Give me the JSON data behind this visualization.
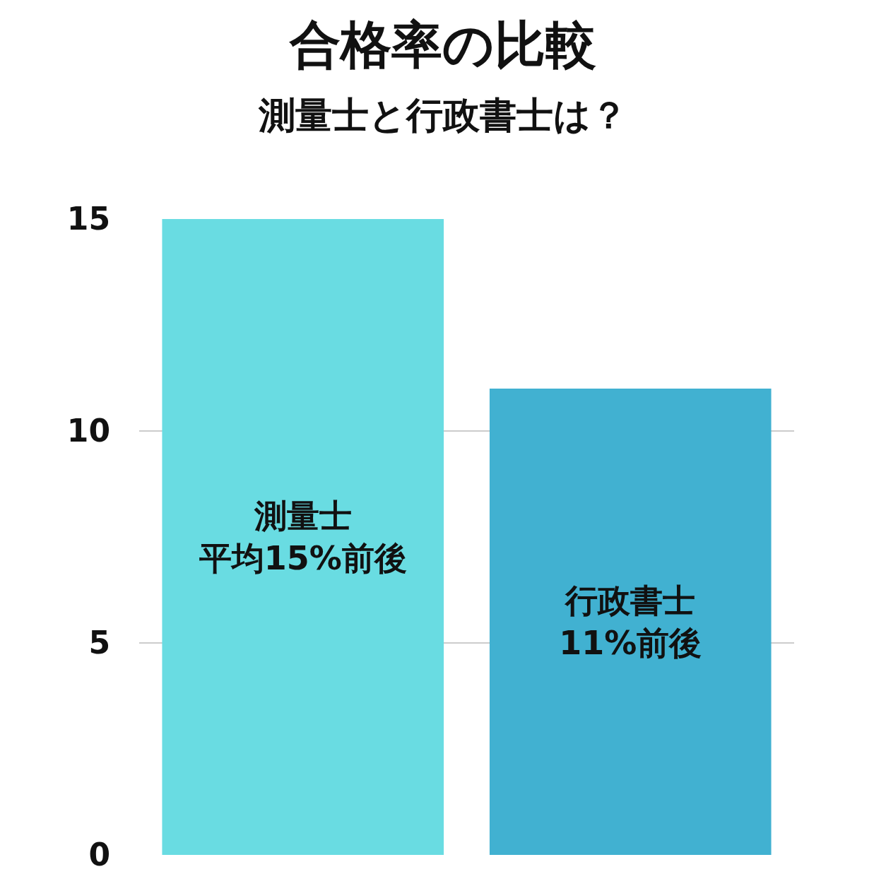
{
  "chart_data": {
    "type": "bar",
    "title": "合格率の比較",
    "subtitle": "測量士と行政書士は？",
    "categories": [
      "測量士",
      "行政書士"
    ],
    "values": [
      15,
      11
    ],
    "colors": [
      "#69dce2",
      "#41b1d1"
    ],
    "value_labels": [
      "平均15%前後",
      "11%前後"
    ],
    "ylim": [
      0,
      15
    ],
    "yticks": [
      0,
      5,
      10,
      15
    ],
    "grid": "y",
    "tick_labels": "y"
  }
}
